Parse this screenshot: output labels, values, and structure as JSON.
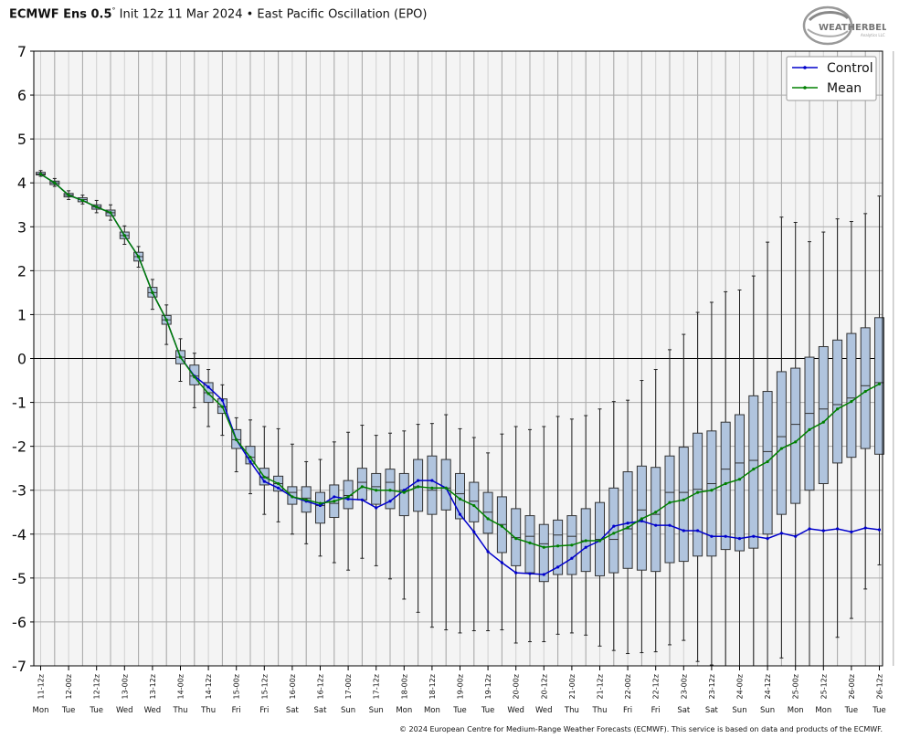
{
  "header": {
    "model": "ECMWF Ens 0.5",
    "degree": "°",
    "subtitle": "Init 12z 11 Mar 2024 • East Pacific Oscillation (EPO)"
  },
  "logo": {
    "line1": "WEATHERBELL",
    "line2": "Analytics LLC"
  },
  "footer": {
    "copyright": "© 2024 European Centre for Medium-Range Weather Forecasts (ECMWF). This service is based on data and products of the ECMWF."
  },
  "colors": {
    "control": "#0000cc",
    "mean": "#008000",
    "box_fill": "#b0c4de",
    "plot_bg": "#f4f4f4",
    "grid": "#aaaaaa"
  },
  "chart_data": {
    "type": "box",
    "title": "East Pacific Oscillation (EPO)",
    "ylim": [
      -7,
      7
    ],
    "y_ticks": [
      7,
      6,
      5,
      4,
      3,
      2,
      1,
      0,
      -1,
      -2,
      -3,
      -4,
      -5,
      -6,
      -7
    ],
    "x_time_labels": [
      "11-12z",
      "12-00z",
      "12-12z",
      "13-00z",
      "13-12z",
      "14-00z",
      "14-12z",
      "15-00z",
      "15-12z",
      "16-00z",
      "16-12z",
      "17-00z",
      "17-12z",
      "18-00z",
      "18-12z",
      "19-00z",
      "19-12z",
      "20-00z",
      "20-12z",
      "21-00z",
      "21-12z",
      "22-00z",
      "22-12z",
      "23-00z",
      "23-12z",
      "24-00z",
      "24-12z",
      "25-00z",
      "25-12z",
      "26-00z",
      "26-12z"
    ],
    "x_day_labels": [
      "Mon",
      "Tue",
      "Tue",
      "Wed",
      "Wed",
      "Thu",
      "Thu",
      "Fri",
      "Fri",
      "Sat",
      "Sat",
      "Sun",
      "Sun",
      "Mon",
      "Mon",
      "Tue",
      "Tue",
      "Wed",
      "Wed",
      "Thu",
      "Thu",
      "Fri",
      "Fri",
      "Sat",
      "Sat",
      "Sun",
      "Sun",
      "Mon",
      "Mon",
      "Tue",
      "Tue"
    ],
    "legend": {
      "position": "top-right",
      "entries": [
        "Control",
        "Mean"
      ]
    },
    "series": [
      {
        "name": "Control",
        "values": [
          4.2,
          4.0,
          3.72,
          3.6,
          3.45,
          3.32,
          2.8,
          2.32,
          1.5,
          0.88,
          0.03,
          -0.4,
          -0.65,
          -0.95,
          -1.85,
          -2.35,
          -2.8,
          -2.95,
          -3.15,
          -3.25,
          -3.35,
          -3.15,
          -3.2,
          -3.22,
          -3.4,
          -3.25,
          -3.0,
          -2.78,
          -2.78,
          -2.95,
          -3.55,
          -3.95,
          -4.4,
          -4.65,
          -4.88,
          -4.9,
          -4.92,
          -4.75,
          -4.55,
          -4.3,
          -4.15,
          -3.82,
          -3.75,
          -3.7,
          -3.8,
          -3.8,
          -3.92,
          -3.92,
          -4.05,
          -4.05,
          -4.1,
          -4.05,
          -4.1,
          -3.98,
          -4.05,
          -3.88,
          -3.92,
          -3.88,
          -3.95,
          -3.86,
          -3.9
        ]
      },
      {
        "name": "Mean",
        "values": [
          4.2,
          4.0,
          3.72,
          3.6,
          3.45,
          3.32,
          2.8,
          2.32,
          1.5,
          0.88,
          0.03,
          -0.42,
          -0.8,
          -1.1,
          -1.85,
          -2.25,
          -2.7,
          -2.85,
          -3.15,
          -3.22,
          -3.3,
          -3.25,
          -3.15,
          -2.92,
          -3.0,
          -3.0,
          -3.05,
          -2.92,
          -2.95,
          -2.95,
          -3.2,
          -3.35,
          -3.65,
          -3.82,
          -4.1,
          -4.2,
          -4.3,
          -4.27,
          -4.25,
          -4.15,
          -4.15,
          -3.98,
          -3.85,
          -3.65,
          -3.5,
          -3.28,
          -3.22,
          -3.05,
          -3.0,
          -2.85,
          -2.75,
          -2.52,
          -2.35,
          -2.05,
          -1.9,
          -1.62,
          -1.45,
          -1.15,
          -0.98,
          -0.75,
          -0.58
        ]
      }
    ],
    "boxes": [
      {
        "min": 4.15,
        "q1": 4.18,
        "med": 4.2,
        "q3": 4.24,
        "max": 4.28
      },
      {
        "min": 3.92,
        "q1": 3.96,
        "med": 4.0,
        "q3": 4.04,
        "max": 4.1
      },
      {
        "min": 3.62,
        "q1": 3.68,
        "med": 3.72,
        "q3": 3.76,
        "max": 3.82
      },
      {
        "min": 3.52,
        "q1": 3.57,
        "med": 3.62,
        "q3": 3.66,
        "max": 3.72
      },
      {
        "min": 3.32,
        "q1": 3.4,
        "med": 3.45,
        "q3": 3.5,
        "max": 3.6
      },
      {
        "min": 3.15,
        "q1": 3.25,
        "med": 3.32,
        "q3": 3.38,
        "max": 3.5
      },
      {
        "min": 2.6,
        "q1": 2.73,
        "med": 2.8,
        "q3": 2.88,
        "max": 3.02
      },
      {
        "min": 2.08,
        "q1": 2.22,
        "med": 2.32,
        "q3": 2.42,
        "max": 2.55
      },
      {
        "min": 1.12,
        "q1": 1.4,
        "med": 1.5,
        "q3": 1.62,
        "max": 1.8
      },
      {
        "min": 0.32,
        "q1": 0.78,
        "med": 0.88,
        "q3": 0.98,
        "max": 1.22
      },
      {
        "min": -0.52,
        "q1": -0.12,
        "med": 0.03,
        "q3": 0.18,
        "max": 0.45
      },
      {
        "min": -1.12,
        "q1": -0.6,
        "med": -0.4,
        "q3": -0.15,
        "max": 0.12
      },
      {
        "min": -1.55,
        "q1": -1.0,
        "med": -0.78,
        "q3": -0.55,
        "max": -0.25
      },
      {
        "min": -1.75,
        "q1": -1.25,
        "med": -1.1,
        "q3": -0.92,
        "max": -0.6
      },
      {
        "min": -2.58,
        "q1": -2.05,
        "med": -1.85,
        "q3": -1.62,
        "max": -1.35
      },
      {
        "min": -3.08,
        "q1": -2.4,
        "med": -2.25,
        "q3": -2.0,
        "max": -1.4
      },
      {
        "min": -3.55,
        "q1": -2.88,
        "med": -2.7,
        "q3": -2.5,
        "max": -1.55
      },
      {
        "min": -3.72,
        "q1": -3.02,
        "med": -2.85,
        "q3": -2.68,
        "max": -1.6
      },
      {
        "min": -4.0,
        "q1": -3.32,
        "med": -3.05,
        "q3": -2.92,
        "max": -1.95
      },
      {
        "min": -4.22,
        "q1": -3.5,
        "med": -3.18,
        "q3": -2.92,
        "max": -2.35
      },
      {
        "min": -4.5,
        "q1": -3.75,
        "med": -3.35,
        "q3": -3.05,
        "max": -2.3
      },
      {
        "min": -4.65,
        "q1": -3.62,
        "med": -3.3,
        "q3": -2.88,
        "max": -1.9
      },
      {
        "min": -4.82,
        "q1": -3.42,
        "med": -3.12,
        "q3": -2.78,
        "max": -1.68
      },
      {
        "min": -4.55,
        "q1": -3.22,
        "med": -2.82,
        "q3": -2.5,
        "max": -1.52
      },
      {
        "min": -4.72,
        "q1": -3.32,
        "med": -2.92,
        "q3": -2.62,
        "max": -1.75
      },
      {
        "min": -5.02,
        "q1": -3.42,
        "med": -2.82,
        "q3": -2.52,
        "max": -1.7
      },
      {
        "min": -5.48,
        "q1": -3.58,
        "med": -3.0,
        "q3": -2.62,
        "max": -1.65
      },
      {
        "min": -5.78,
        "q1": -3.48,
        "med": -2.92,
        "q3": -2.3,
        "max": -1.5
      },
      {
        "min": -6.12,
        "q1": -3.55,
        "med": -3.0,
        "q3": -2.22,
        "max": -1.48
      },
      {
        "min": -6.18,
        "q1": -3.45,
        "med": -2.95,
        "q3": -2.3,
        "max": -1.28
      },
      {
        "min": -6.25,
        "q1": -3.65,
        "med": -3.08,
        "q3": -2.62,
        "max": -1.6
      },
      {
        "min": -6.2,
        "q1": -3.72,
        "med": -3.25,
        "q3": -2.82,
        "max": -1.8
      },
      {
        "min": -6.2,
        "q1": -3.98,
        "med": -3.5,
        "q3": -3.05,
        "max": -2.15
      },
      {
        "min": -6.18,
        "q1": -4.42,
        "med": -3.78,
        "q3": -3.15,
        "max": -1.72
      },
      {
        "min": -6.48,
        "q1": -4.72,
        "med": -4.08,
        "q3": -3.42,
        "max": -1.55
      },
      {
        "min": -6.45,
        "q1": -4.88,
        "med": -4.05,
        "q3": -3.58,
        "max": -1.62
      },
      {
        "min": -6.45,
        "q1": -5.08,
        "med": -4.22,
        "q3": -3.78,
        "max": -1.55
      },
      {
        "min": -6.28,
        "q1": -4.92,
        "med": -4.02,
        "q3": -3.68,
        "max": -1.32
      },
      {
        "min": -6.25,
        "q1": -4.92,
        "med": -4.05,
        "q3": -3.58,
        "max": -1.38
      },
      {
        "min": -6.3,
        "q1": -4.85,
        "med": -4.15,
        "q3": -3.42,
        "max": -1.3
      },
      {
        "min": -6.55,
        "q1": -4.95,
        "med": -4.12,
        "q3": -3.28,
        "max": -1.15
      },
      {
        "min": -6.65,
        "q1": -4.88,
        "med": -4.12,
        "q3": -2.95,
        "max": -0.98
      },
      {
        "min": -6.72,
        "q1": -4.78,
        "med": -3.88,
        "q3": -2.58,
        "max": -0.95
      },
      {
        "min": -6.7,
        "q1": -4.82,
        "med": -3.45,
        "q3": -2.45,
        "max": -0.5
      },
      {
        "min": -6.68,
        "q1": -4.85,
        "med": -3.55,
        "q3": -2.48,
        "max": -0.25
      },
      {
        "min": -6.52,
        "q1": -4.65,
        "med": -3.05,
        "q3": -2.22,
        "max": 0.2
      },
      {
        "min": -6.42,
        "q1": -4.62,
        "med": -3.05,
        "q3": -2.02,
        "max": 0.55
      },
      {
        "min": -6.9,
        "q1": -4.5,
        "med": -2.98,
        "q3": -1.7,
        "max": 1.05
      },
      {
        "min": -6.98,
        "q1": -4.5,
        "med": -2.85,
        "q3": -1.65,
        "max": 1.28
      },
      {
        "min": -7.0,
        "q1": -4.35,
        "med": -2.52,
        "q3": -1.45,
        "max": 1.52
      },
      {
        "min": -7.0,
        "q1": -4.38,
        "med": -2.38,
        "q3": -1.28,
        "max": 1.56
      },
      {
        "min": -7.0,
        "q1": -4.32,
        "med": -2.32,
        "q3": -0.85,
        "max": 1.88
      },
      {
        "min": -7.0,
        "q1": -4.0,
        "med": -2.12,
        "q3": -0.75,
        "max": 2.65
      },
      {
        "min": -6.82,
        "q1": -3.55,
        "med": -1.78,
        "q3": -0.3,
        "max": 3.22
      },
      {
        "min": -7.0,
        "q1": -3.3,
        "med": -1.5,
        "q3": -0.22,
        "max": 3.1
      },
      {
        "min": -7.0,
        "q1": -3.0,
        "med": -1.25,
        "q3": 0.03,
        "max": 2.66
      },
      {
        "min": -7.0,
        "q1": -2.85,
        "med": -1.15,
        "q3": 0.27,
        "max": 2.88
      },
      {
        "min": -6.35,
        "q1": -2.38,
        "med": -1.05,
        "q3": 0.42,
        "max": 3.18
      },
      {
        "min": -5.92,
        "q1": -2.25,
        "med": -0.9,
        "q3": 0.57,
        "max": 3.12
      },
      {
        "min": -5.25,
        "q1": -2.05,
        "med": -0.62,
        "q3": 0.7,
        "max": 3.3
      },
      {
        "min": -4.7,
        "q1": -2.18,
        "med": -0.55,
        "q3": 0.93,
        "max": 3.7
      }
    ]
  }
}
